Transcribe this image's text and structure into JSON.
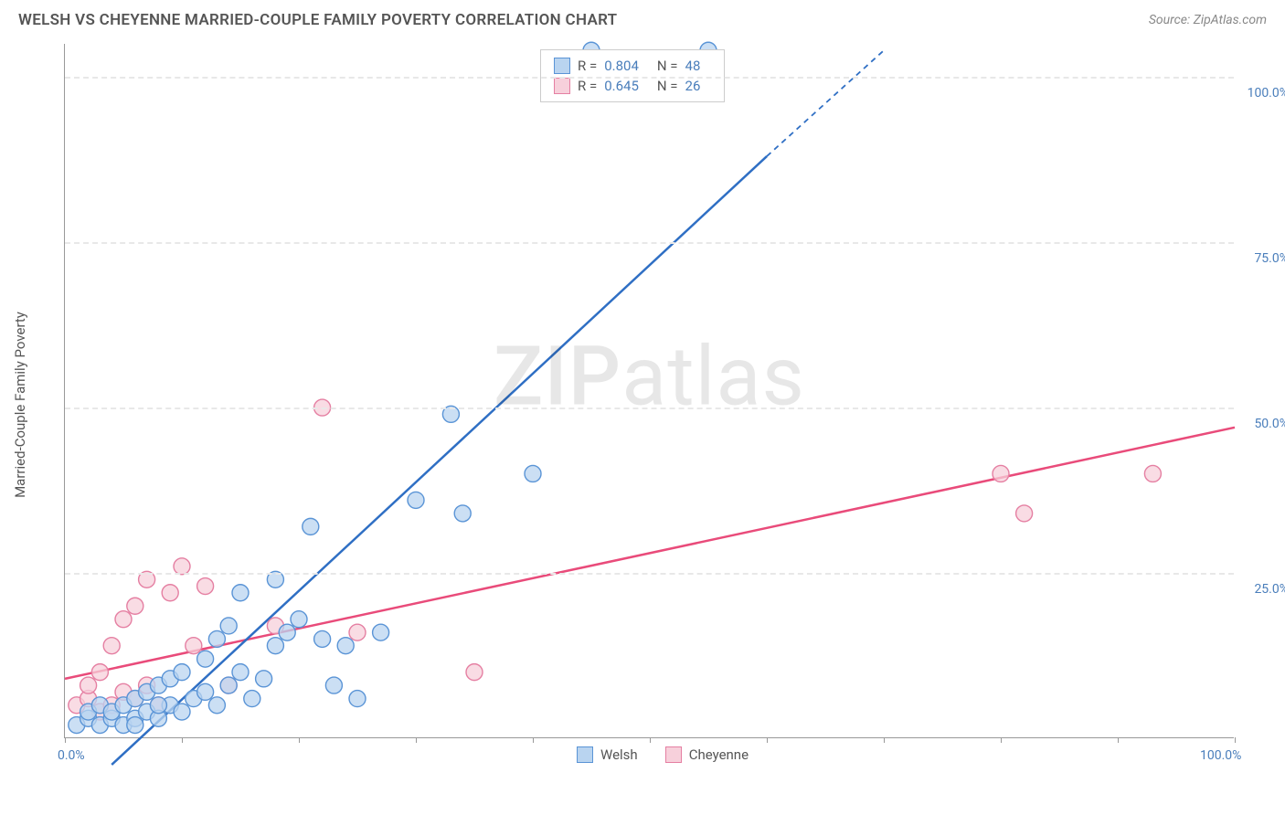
{
  "header": {
    "title": "WELSH VS CHEYENNE MARRIED-COUPLE FAMILY POVERTY CORRELATION CHART",
    "source_prefix": "Source: ",
    "source_name": "ZipAtlas.com"
  },
  "axes": {
    "y_label": "Married-Couple Family Poverty",
    "x_min": 0,
    "x_max": 100,
    "y_min": 0,
    "y_max": 105,
    "x_ticks": [
      0,
      10,
      20,
      30,
      40,
      50,
      60,
      70,
      80,
      90,
      100
    ],
    "x_tick_labels": {
      "0": "0.0%",
      "100": "100.0%"
    },
    "y_grid": [
      25,
      50,
      75,
      100
    ],
    "y_tick_labels": {
      "25": "25.0%",
      "50": "50.0%",
      "75": "75.0%",
      "100": "100.0%"
    }
  },
  "series": {
    "welsh": {
      "label": "Welsh",
      "R": "0.804",
      "N": "48",
      "fill": "#b9d4f0",
      "stroke": "#5a94d6",
      "line_color": "#2f6fc4",
      "trend": {
        "x1": 4,
        "y1": -4,
        "x2_solid": 60,
        "y2_solid": 88,
        "x2_dash": 70,
        "y2_dash": 104
      },
      "points": [
        [
          1,
          2
        ],
        [
          2,
          3
        ],
        [
          3,
          2
        ],
        [
          2,
          4
        ],
        [
          4,
          3
        ],
        [
          3,
          5
        ],
        [
          5,
          2
        ],
        [
          4,
          4
        ],
        [
          6,
          3
        ],
        [
          5,
          5
        ],
        [
          7,
          4
        ],
        [
          6,
          6
        ],
        [
          8,
          3
        ],
        [
          7,
          7
        ],
        [
          9,
          5
        ],
        [
          8,
          8
        ],
        [
          10,
          4
        ],
        [
          9,
          9
        ],
        [
          11,
          6
        ],
        [
          10,
          10
        ],
        [
          12,
          7
        ],
        [
          13,
          5
        ],
        [
          14,
          8
        ],
        [
          12,
          12
        ],
        [
          15,
          10
        ],
        [
          13,
          15
        ],
        [
          16,
          6
        ],
        [
          14,
          17
        ],
        [
          17,
          9
        ],
        [
          18,
          14
        ],
        [
          15,
          22
        ],
        [
          19,
          16
        ],
        [
          20,
          18
        ],
        [
          22,
          15
        ],
        [
          18,
          24
        ],
        [
          23,
          8
        ],
        [
          25,
          6
        ],
        [
          21,
          32
        ],
        [
          24,
          14
        ],
        [
          27,
          16
        ],
        [
          30,
          36
        ],
        [
          33,
          49
        ],
        [
          34,
          34
        ],
        [
          40,
          40
        ],
        [
          45,
          104
        ],
        [
          55,
          104
        ],
        [
          6,
          2
        ],
        [
          8,
          5
        ]
      ]
    },
    "cheyenne": {
      "label": "Cheyenne",
      "R": "0.645",
      "N": "26",
      "fill": "#f7d0db",
      "stroke": "#e57fa2",
      "line_color": "#e94b7a",
      "trend": {
        "x1": 0,
        "y1": 9,
        "x2_solid": 100,
        "y2_solid": 47,
        "x2_dash": 100,
        "y2_dash": 47
      },
      "points": [
        [
          1,
          5
        ],
        [
          2,
          6
        ],
        [
          3,
          4
        ],
        [
          2,
          8
        ],
        [
          4,
          5
        ],
        [
          5,
          7
        ],
        [
          3,
          10
        ],
        [
          6,
          6
        ],
        [
          4,
          14
        ],
        [
          7,
          8
        ],
        [
          5,
          18
        ],
        [
          8,
          5
        ],
        [
          6,
          20
        ],
        [
          9,
          22
        ],
        [
          7,
          24
        ],
        [
          10,
          26
        ],
        [
          11,
          14
        ],
        [
          12,
          23
        ],
        [
          14,
          8
        ],
        [
          18,
          17
        ],
        [
          22,
          50
        ],
        [
          25,
          16
        ],
        [
          35,
          10
        ],
        [
          80,
          40
        ],
        [
          82,
          34
        ],
        [
          93,
          40
        ]
      ]
    }
  },
  "style": {
    "marker_radius": 9,
    "marker_stroke_width": 1.4,
    "trend_width_solid": 2.5,
    "trend_width_dash": 1.8,
    "grid_color": "#e8e8e8",
    "axis_color": "#999999",
    "bg": "#ffffff",
    "tick_label_color": "#4a7ebb"
  },
  "watermark": {
    "bold": "ZIP",
    "rest": "atlas"
  },
  "legend_labels": {
    "R": "R =",
    "N": "N ="
  }
}
